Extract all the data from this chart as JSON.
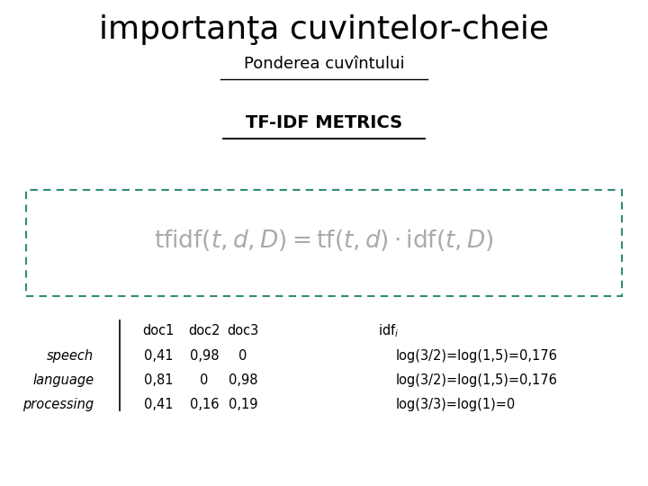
{
  "title": "importanţa cuvintelor-cheie",
  "subtitle": "Ponderea cuvîntului",
  "section_label": "TF-IDF METRICS",
  "table_header": [
    "",
    "doc1",
    "doc2",
    "doc3"
  ],
  "table_rows": [
    [
      "speech",
      "0,41",
      "0,98",
      "0"
    ],
    [
      "language",
      "0,81",
      "0",
      "0,98"
    ],
    [
      "processing",
      "0,41",
      "0,16",
      "0,19"
    ]
  ],
  "idf_rows": [
    "log(3/2)=log(1,5)=0,176",
    "log(3/2)=log(1,5)=0,176",
    "log(3/3)=log(1)=0"
  ],
  "bg_color": "#ffffff",
  "title_color": "#000000",
  "subtitle_color": "#000000",
  "section_color": "#000000",
  "box_border_color": "#2e8b7a",
  "table_text_color": "#000000",
  "formula_color": "#aaaaaa"
}
